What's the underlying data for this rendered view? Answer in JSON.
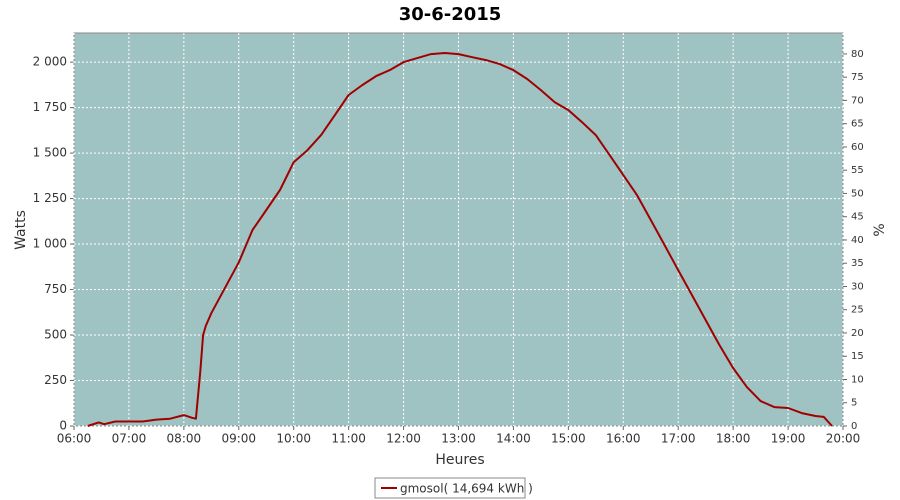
{
  "chart_data": {
    "type": "line",
    "title": "30-6-2015",
    "x_label": "Heures",
    "y_label": "Watts",
    "y2_label": "%",
    "x": [
      6.25,
      6.45,
      6.55,
      6.75,
      7.0,
      7.25,
      7.5,
      7.75,
      8.0,
      8.15,
      8.22,
      8.3,
      8.35,
      8.4,
      8.5,
      8.75,
      9.0,
      9.25,
      9.5,
      9.75,
      10.0,
      10.25,
      10.5,
      10.75,
      11.0,
      11.25,
      11.5,
      11.75,
      12.0,
      12.25,
      12.5,
      12.75,
      13.0,
      13.25,
      13.5,
      13.75,
      14.0,
      14.25,
      14.5,
      14.75,
      15.0,
      15.25,
      15.5,
      15.75,
      16.0,
      16.25,
      16.5,
      16.75,
      17.0,
      17.25,
      17.5,
      17.75,
      18.0,
      18.25,
      18.5,
      18.75,
      19.0,
      19.25,
      19.5,
      19.65,
      19.8
    ],
    "series": [
      {
        "name": "gmosol( 14,694 kWh )",
        "color": "#a00000",
        "values": [
          0,
          20,
          10,
          25,
          25,
          25,
          35,
          40,
          60,
          45,
          40,
          300,
          500,
          550,
          620,
          760,
          900,
          1077,
          1187,
          1297,
          1450,
          1516,
          1600,
          1709,
          1819,
          1874,
          1923,
          1956,
          2000,
          2022,
          2044,
          2050,
          2044,
          2027,
          2011,
          1989,
          1956,
          1907,
          1846,
          1780,
          1736,
          1670,
          1599,
          1489,
          1379,
          1269,
          1132,
          995,
          857,
          720,
          582,
          445,
          319,
          214,
          137,
          104,
          99,
          71,
          55,
          50,
          0
        ]
      }
    ],
    "xlim": [
      6,
      20
    ],
    "xticks": [
      {
        "value": 6,
        "label": "06:00"
      },
      {
        "value": 7,
        "label": "07:00"
      },
      {
        "value": 8,
        "label": "08:00"
      },
      {
        "value": 9,
        "label": "09:00"
      },
      {
        "value": 10,
        "label": "10:00"
      },
      {
        "value": 11,
        "label": "11:00"
      },
      {
        "value": 12,
        "label": "12:00"
      },
      {
        "value": 13,
        "label": "13:00"
      },
      {
        "value": 14,
        "label": "14:00"
      },
      {
        "value": 15,
        "label": "15:00"
      },
      {
        "value": 16,
        "label": "16:00"
      },
      {
        "value": 17,
        "label": "17:00"
      },
      {
        "value": 18,
        "label": "18:00"
      },
      {
        "value": 19,
        "label": "19:00"
      },
      {
        "value": 20,
        "label": "20:00"
      }
    ],
    "ylim": [
      0,
      2160
    ],
    "yticks": [
      0,
      250,
      500,
      750,
      {
        "value": 1000,
        "label": "1 000"
      },
      {
        "value": 1250,
        "label": "1 250"
      },
      {
        "value": 1500,
        "label": "1 500"
      },
      {
        "value": 1750,
        "label": "1 750"
      },
      {
        "value": 2000,
        "label": "2 000"
      }
    ],
    "y2lim": [
      0,
      84.5
    ],
    "y2ticks": [
      0,
      5,
      10,
      15,
      20,
      25,
      30,
      35,
      40,
      45,
      50,
      55,
      60,
      65,
      70,
      75,
      80
    ],
    "grid": true,
    "legend": "bottom",
    "plot_background": "#9fc3c3"
  }
}
